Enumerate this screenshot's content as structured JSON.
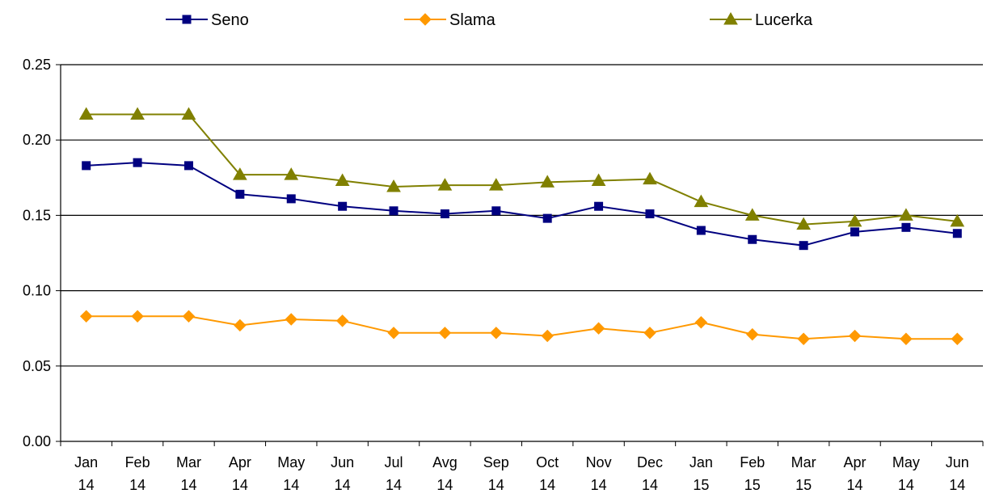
{
  "chart_data": {
    "type": "line",
    "title": "",
    "xlabel": "",
    "ylabel": "",
    "ylim": [
      0,
      0.25
    ],
    "yticks": [
      "0.00",
      "0.05",
      "0.10",
      "0.15",
      "0.20",
      "0.25"
    ],
    "grid": "horizontal",
    "legend_position": "top",
    "categories": [
      {
        "month": "Jan",
        "year": "14"
      },
      {
        "month": "Feb",
        "year": "14"
      },
      {
        "month": "Mar",
        "year": "14"
      },
      {
        "month": "Apr",
        "year": "14"
      },
      {
        "month": "May",
        "year": "14"
      },
      {
        "month": "Jun",
        "year": "14"
      },
      {
        "month": "Jul",
        "year": "14"
      },
      {
        "month": "Avg",
        "year": "14"
      },
      {
        "month": "Sep",
        "year": "14"
      },
      {
        "month": "Oct",
        "year": "14"
      },
      {
        "month": "Nov",
        "year": "14"
      },
      {
        "month": "Dec",
        "year": "14"
      },
      {
        "month": "Jan",
        "year": "15"
      },
      {
        "month": "Feb",
        "year": "15"
      },
      {
        "month": "Mar",
        "year": "15"
      },
      {
        "month": "Apr",
        "year": "14"
      },
      {
        "month": "May",
        "year": "14"
      },
      {
        "month": "Jun",
        "year": "14"
      }
    ],
    "series": [
      {
        "name": "Seno",
        "color": "#000080",
        "marker": "square",
        "values": [
          0.183,
          0.185,
          0.183,
          0.164,
          0.161,
          0.156,
          0.153,
          0.151,
          0.153,
          0.148,
          0.156,
          0.151,
          0.14,
          0.134,
          0.13,
          0.139,
          0.142,
          0.138
        ]
      },
      {
        "name": "Slama",
        "color": "#FF9900",
        "marker": "diamond",
        "values": [
          0.083,
          0.083,
          0.083,
          0.077,
          0.081,
          0.08,
          0.072,
          0.072,
          0.072,
          0.07,
          0.075,
          0.072,
          0.079,
          0.071,
          0.068,
          0.07,
          0.068,
          0.068
        ]
      },
      {
        "name": "Lucerka",
        "color": "#808000",
        "marker": "triangle",
        "values": [
          0.217,
          0.217,
          0.217,
          0.177,
          0.177,
          0.173,
          0.169,
          0.17,
          0.17,
          0.172,
          0.173,
          0.174,
          0.159,
          0.15,
          0.144,
          0.146,
          0.15,
          0.146
        ]
      }
    ]
  }
}
